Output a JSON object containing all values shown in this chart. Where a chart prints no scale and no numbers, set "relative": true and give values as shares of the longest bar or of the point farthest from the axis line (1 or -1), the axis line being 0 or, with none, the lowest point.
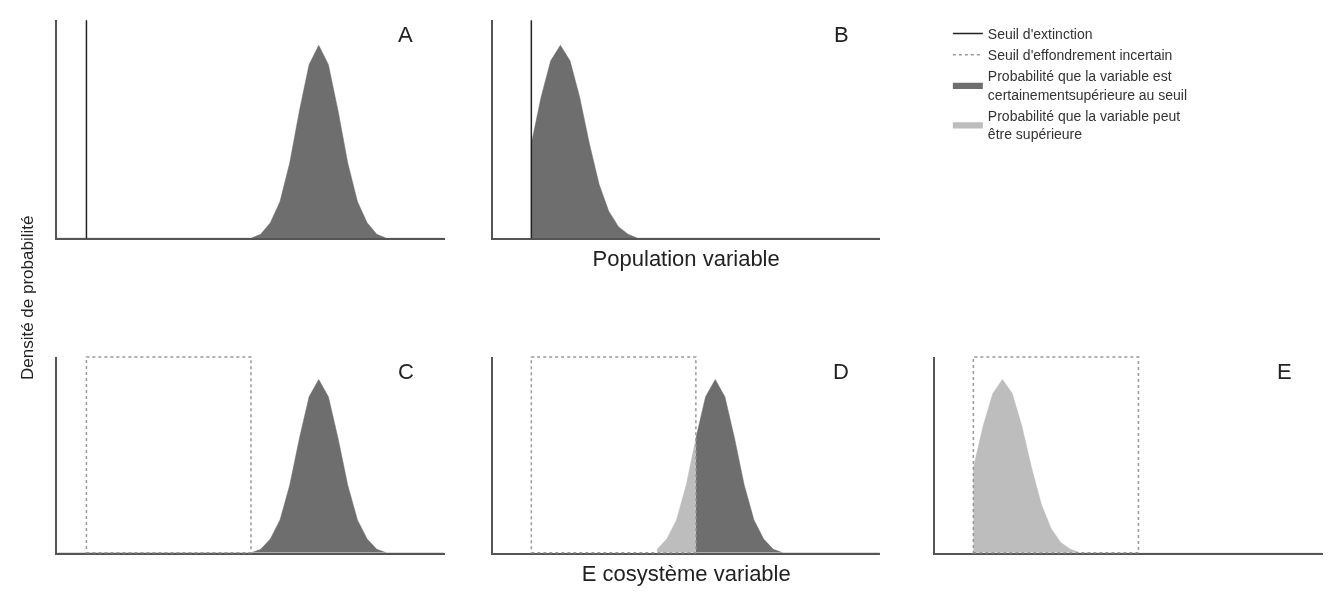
{
  "chart_data": [
    {
      "type": "area",
      "title": "A",
      "ylabel": "Densité de probabilité",
      "relative": true,
      "tick_labels": false,
      "categories": [
        null,
        null,
        null,
        null,
        null,
        null,
        null,
        null,
        null,
        null,
        null,
        null,
        null,
        null,
        null,
        null,
        null,
        null,
        null,
        null,
        null,
        null,
        null,
        null,
        null,
        null,
        null,
        null,
        null,
        null,
        null,
        null,
        null,
        null,
        null,
        null,
        null,
        null,
        null,
        null,
        null
      ],
      "series": [
        {
          "name": "Probabilité que la variable est certainementsupérieure au seuil",
          "color": "#6e6e6e",
          "values": [
            0,
            0,
            0,
            0,
            0,
            0,
            0,
            0,
            0,
            0,
            0,
            0,
            0,
            0,
            0,
            0,
            0,
            0,
            0,
            0,
            0,
            0.02,
            0.08,
            0.19,
            0.39,
            0.66,
            0.9,
            1,
            0.9,
            0.66,
            0.39,
            0.19,
            0.08,
            0.02,
            0,
            0,
            0,
            0,
            0,
            0,
            0
          ]
        }
      ]
    },
    {
      "type": "area",
      "title": "B",
      "xlabel": "Population variable",
      "relative": true,
      "tick_labels": false,
      "legend": "right",
      "annotations": [
        "Seuil d'extinction",
        "Seuil d'effondrement incertain"
      ],
      "categories": [
        null,
        null,
        null,
        null,
        null,
        null,
        null,
        null,
        null,
        null,
        null,
        null,
        null,
        null,
        null,
        null,
        null,
        null,
        null,
        null,
        null,
        null,
        null,
        null,
        null,
        null,
        null,
        null,
        null,
        null,
        null,
        null,
        null,
        null,
        null,
        null,
        null,
        null,
        null,
        null,
        null
      ],
      "series": [
        {
          "name": "Probabilité que la variable est certainementsupérieure au seuil",
          "color": "#6e6e6e",
          "values": [
            null,
            null,
            null,
            null,
            0.49,
            0.73,
            0.92,
            1,
            0.92,
            0.73,
            0.49,
            0.28,
            0.14,
            0.06,
            0.02,
            0,
            0,
            0,
            0,
            0,
            0,
            0,
            0,
            0,
            0,
            0,
            0,
            0,
            0,
            0,
            0,
            0,
            0,
            0,
            0,
            0,
            0,
            0,
            0,
            0,
            0
          ]
        }
      ]
    },
    {
      "type": "area",
      "title": "C",
      "relative": true,
      "tick_labels": false,
      "categories": [
        null,
        null,
        null,
        null,
        null,
        null,
        null,
        null,
        null,
        null,
        null,
        null,
        null,
        null,
        null,
        null,
        null,
        null,
        null,
        null,
        null,
        null,
        null,
        null,
        null,
        null,
        null,
        null,
        null,
        null,
        null,
        null,
        null,
        null,
        null,
        null,
        null,
        null,
        null,
        null,
        null
      ],
      "series": [
        {
          "name": "Probabilité que la variable est certainementsupérieure au seuil",
          "color": "#6e6e6e",
          "values": [
            0,
            0,
            0,
            0,
            0,
            0,
            0,
            0,
            0,
            0,
            0,
            0,
            0,
            0,
            0,
            0,
            0,
            0,
            0,
            0,
            0,
            0.02,
            0.08,
            0.19,
            0.39,
            0.66,
            0.9,
            1,
            0.9,
            0.66,
            0.39,
            0.19,
            0.08,
            0.02,
            0,
            0,
            0,
            0,
            0,
            0,
            0
          ]
        }
      ]
    },
    {
      "type": "area",
      "title": "D",
      "xlabel": "E cosystème variable",
      "relative": true,
      "tick_labels": false,
      "categories": [
        null,
        null,
        null,
        null,
        null,
        null,
        null,
        null,
        null,
        null,
        null,
        null,
        null,
        null,
        null,
        null,
        null,
        null,
        null,
        null,
        null,
        null,
        null,
        null,
        null,
        null,
        null,
        null,
        null,
        null,
        null,
        null,
        null,
        null,
        null,
        null,
        null,
        null,
        null,
        null,
        null
      ],
      "series": [
        {
          "name": "Probabilité que la variable est certainementsupérieure au seuil",
          "color": "#6e6e6e",
          "values": [
            null,
            null,
            null,
            null,
            null,
            null,
            null,
            null,
            null,
            null,
            null,
            null,
            null,
            null,
            null,
            null,
            null,
            null,
            null,
            null,
            null,
            0.66,
            0.9,
            1,
            0.9,
            0.66,
            0.39,
            0.19,
            0.08,
            0.02,
            0,
            0,
            0,
            0,
            0,
            0,
            0,
            0,
            0,
            0,
            0
          ]
        },
        {
          "name": "Probabilité que la variable peut être supérieure",
          "color": "#bdbdbd",
          "values": [
            null,
            null,
            null,
            null,
            null,
            null,
            null,
            null,
            null,
            null,
            null,
            null,
            null,
            null,
            null,
            null,
            null,
            0.02,
            0.08,
            0.19,
            0.39,
            0.66,
            null,
            null,
            null,
            null,
            null,
            null,
            null,
            null,
            null,
            null,
            null,
            null,
            null,
            null,
            null,
            null,
            null,
            null,
            null
          ]
        }
      ]
    },
    {
      "type": "area",
      "title": "E",
      "relative": true,
      "tick_labels": false,
      "categories": [
        null,
        null,
        null,
        null,
        null,
        null,
        null,
        null,
        null,
        null,
        null,
        null,
        null,
        null,
        null,
        null,
        null,
        null,
        null,
        null,
        null,
        null,
        null,
        null,
        null,
        null,
        null,
        null,
        null,
        null,
        null,
        null,
        null,
        null,
        null,
        null,
        null,
        null,
        null,
        null,
        null
      ],
      "series": [
        {
          "name": "Probabilité que la variable peut être supérieure",
          "color": "#bdbdbd",
          "values": [
            null,
            null,
            null,
            null,
            0.49,
            0.73,
            0.92,
            1,
            0.92,
            0.73,
            0.49,
            0.28,
            0.14,
            0.06,
            0.02,
            0,
            0,
            0,
            0,
            0,
            0,
            0,
            0,
            0,
            0,
            0,
            0,
            0,
            0,
            0,
            0,
            0,
            0,
            0,
            0,
            0,
            0,
            0,
            0,
            0,
            0
          ]
        }
      ]
    }
  ]
}
